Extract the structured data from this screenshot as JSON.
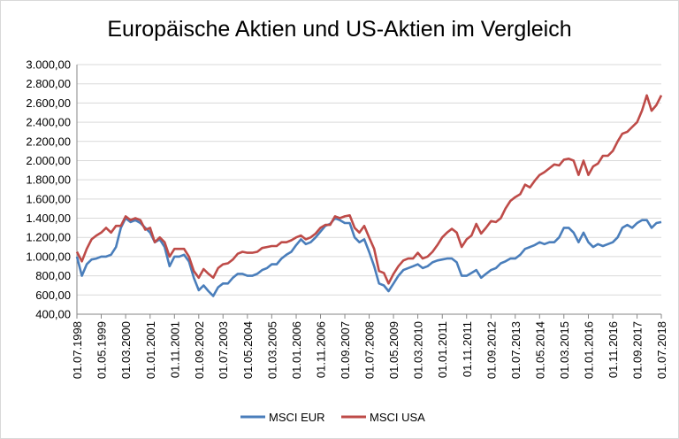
{
  "chart_data": {
    "type": "line",
    "title": "Europäische Aktien und US-Aktien im Vergleich",
    "xlabel": "",
    "ylabel": "",
    "ylim": [
      400,
      3000
    ],
    "y_ticks": [
      "400,00",
      "600,00",
      "800,00",
      "1.000,00",
      "1.200,00",
      "1.400,00",
      "1.600,00",
      "1.800,00",
      "2.000,00",
      "2.200,00",
      "2.400,00",
      "2.600,00",
      "2.800,00",
      "3.000,00"
    ],
    "x_ticks": [
      "01.07.1998",
      "01.05.1999",
      "01.03.2000",
      "01.01.2001",
      "01.11.2001",
      "01.09.2002",
      "01.07.2003",
      "01.05.2004",
      "01.03.2005",
      "01.01.2006",
      "01.11.2006",
      "01.09.2007",
      "01.07.2008",
      "01.05.2009",
      "01.03.2010",
      "01.01.2011",
      "01.11.2011",
      "01.09.2012",
      "01.07.2013",
      "01.05.2014",
      "01.03.2015",
      "01.01.2016",
      "01.11.2016",
      "01.09.2017",
      "01.07.2018"
    ],
    "x_range": [
      "1998-07-01",
      "2018-07-01"
    ],
    "legend_position": "bottom",
    "grid": true,
    "series": [
      {
        "name": "MSCI EUR",
        "color": "#4a7ebb",
        "points": [
          [
            "1998-07-01",
            1000
          ],
          [
            "1998-09-01",
            800
          ],
          [
            "1998-11-01",
            920
          ],
          [
            "1999-01-01",
            970
          ],
          [
            "1999-03-01",
            980
          ],
          [
            "1999-05-01",
            1000
          ],
          [
            "1999-07-01",
            1000
          ],
          [
            "1999-09-01",
            1020
          ],
          [
            "1999-11-01",
            1100
          ],
          [
            "2000-01-01",
            1300
          ],
          [
            "2000-03-01",
            1400
          ],
          [
            "2000-05-01",
            1360
          ],
          [
            "2000-07-01",
            1380
          ],
          [
            "2000-09-01",
            1350
          ],
          [
            "2000-11-01",
            1300
          ],
          [
            "2001-01-01",
            1250
          ],
          [
            "2001-03-01",
            1150
          ],
          [
            "2001-05-01",
            1180
          ],
          [
            "2001-07-01",
            1100
          ],
          [
            "2001-09-01",
            900
          ],
          [
            "2001-11-01",
            1000
          ],
          [
            "2002-01-01",
            1000
          ],
          [
            "2002-03-01",
            1020
          ],
          [
            "2002-05-01",
            950
          ],
          [
            "2002-07-01",
            780
          ],
          [
            "2002-09-01",
            650
          ],
          [
            "2002-11-01",
            700
          ],
          [
            "2003-01-01",
            640
          ],
          [
            "2003-03-01",
            590
          ],
          [
            "2003-05-01",
            680
          ],
          [
            "2003-07-01",
            720
          ],
          [
            "2003-09-01",
            720
          ],
          [
            "2003-11-01",
            780
          ],
          [
            "2004-01-01",
            820
          ],
          [
            "2004-03-01",
            820
          ],
          [
            "2004-05-01",
            800
          ],
          [
            "2004-07-01",
            800
          ],
          [
            "2004-09-01",
            820
          ],
          [
            "2004-11-01",
            860
          ],
          [
            "2005-01-01",
            880
          ],
          [
            "2005-03-01",
            920
          ],
          [
            "2005-05-01",
            920
          ],
          [
            "2005-07-01",
            980
          ],
          [
            "2005-09-01",
            1020
          ],
          [
            "2005-11-01",
            1050
          ],
          [
            "2006-01-01",
            1120
          ],
          [
            "2006-03-01",
            1180
          ],
          [
            "2006-05-01",
            1130
          ],
          [
            "2006-07-01",
            1150
          ],
          [
            "2006-09-01",
            1200
          ],
          [
            "2006-11-01",
            1260
          ],
          [
            "2007-01-01",
            1320
          ],
          [
            "2007-03-01",
            1340
          ],
          [
            "2007-05-01",
            1400
          ],
          [
            "2007-07-01",
            1380
          ],
          [
            "2007-09-01",
            1350
          ],
          [
            "2007-11-01",
            1350
          ],
          [
            "2008-01-01",
            1200
          ],
          [
            "2008-03-01",
            1150
          ],
          [
            "2008-05-01",
            1180
          ],
          [
            "2008-07-01",
            1050
          ],
          [
            "2008-09-01",
            900
          ],
          [
            "2008-11-01",
            720
          ],
          [
            "2009-01-01",
            700
          ],
          [
            "2009-03-01",
            640
          ],
          [
            "2009-05-01",
            720
          ],
          [
            "2009-07-01",
            800
          ],
          [
            "2009-09-01",
            860
          ],
          [
            "2009-11-01",
            880
          ],
          [
            "2010-01-01",
            900
          ],
          [
            "2010-03-01",
            920
          ],
          [
            "2010-05-01",
            880
          ],
          [
            "2010-07-01",
            900
          ],
          [
            "2010-09-01",
            940
          ],
          [
            "2010-11-01",
            960
          ],
          [
            "2011-01-01",
            970
          ],
          [
            "2011-03-01",
            980
          ],
          [
            "2011-05-01",
            980
          ],
          [
            "2011-07-01",
            940
          ],
          [
            "2011-09-01",
            800
          ],
          [
            "2011-11-01",
            800
          ],
          [
            "2012-01-01",
            830
          ],
          [
            "2012-03-01",
            860
          ],
          [
            "2012-05-01",
            780
          ],
          [
            "2012-07-01",
            820
          ],
          [
            "2012-09-01",
            860
          ],
          [
            "2012-11-01",
            880
          ],
          [
            "2013-01-01",
            930
          ],
          [
            "2013-03-01",
            950
          ],
          [
            "2013-05-01",
            980
          ],
          [
            "2013-07-01",
            980
          ],
          [
            "2013-09-01",
            1020
          ],
          [
            "2013-11-01",
            1080
          ],
          [
            "2014-01-01",
            1100
          ],
          [
            "2014-03-01",
            1120
          ],
          [
            "2014-05-01",
            1150
          ],
          [
            "2014-07-01",
            1130
          ],
          [
            "2014-09-01",
            1150
          ],
          [
            "2014-11-01",
            1150
          ],
          [
            "2015-01-01",
            1200
          ],
          [
            "2015-03-01",
            1300
          ],
          [
            "2015-05-01",
            1300
          ],
          [
            "2015-07-01",
            1250
          ],
          [
            "2015-09-01",
            1150
          ],
          [
            "2015-11-01",
            1250
          ],
          [
            "2016-01-01",
            1150
          ],
          [
            "2016-03-01",
            1100
          ],
          [
            "2016-05-01",
            1130
          ],
          [
            "2016-07-01",
            1110
          ],
          [
            "2016-09-01",
            1130
          ],
          [
            "2016-11-01",
            1150
          ],
          [
            "2017-01-01",
            1200
          ],
          [
            "2017-03-01",
            1300
          ],
          [
            "2017-05-01",
            1330
          ],
          [
            "2017-07-01",
            1300
          ],
          [
            "2017-09-01",
            1350
          ],
          [
            "2017-11-01",
            1380
          ],
          [
            "2018-01-01",
            1380
          ],
          [
            "2018-03-01",
            1300
          ],
          [
            "2018-05-01",
            1350
          ],
          [
            "2018-07-01",
            1360
          ]
        ]
      },
      {
        "name": "MSCI USA",
        "color": "#be4b48",
        "points": [
          [
            "1998-07-01",
            1050
          ],
          [
            "1998-09-01",
            950
          ],
          [
            "1998-11-01",
            1080
          ],
          [
            "1999-01-01",
            1180
          ],
          [
            "1999-03-01",
            1220
          ],
          [
            "1999-05-01",
            1250
          ],
          [
            "1999-07-01",
            1300
          ],
          [
            "1999-09-01",
            1250
          ],
          [
            "1999-11-01",
            1320
          ],
          [
            "2000-01-01",
            1320
          ],
          [
            "2000-03-01",
            1420
          ],
          [
            "2000-05-01",
            1380
          ],
          [
            "2000-07-01",
            1400
          ],
          [
            "2000-09-01",
            1380
          ],
          [
            "2000-11-01",
            1280
          ],
          [
            "2001-01-01",
            1300
          ],
          [
            "2001-03-01",
            1150
          ],
          [
            "2001-05-01",
            1200
          ],
          [
            "2001-07-01",
            1150
          ],
          [
            "2001-09-01",
            1000
          ],
          [
            "2001-11-01",
            1080
          ],
          [
            "2002-01-01",
            1080
          ],
          [
            "2002-03-01",
            1080
          ],
          [
            "2002-05-01",
            1000
          ],
          [
            "2002-07-01",
            850
          ],
          [
            "2002-09-01",
            780
          ],
          [
            "2002-11-01",
            870
          ],
          [
            "2003-01-01",
            820
          ],
          [
            "2003-03-01",
            780
          ],
          [
            "2003-05-01",
            880
          ],
          [
            "2003-07-01",
            920
          ],
          [
            "2003-09-01",
            930
          ],
          [
            "2003-11-01",
            970
          ],
          [
            "2004-01-01",
            1030
          ],
          [
            "2004-03-01",
            1050
          ],
          [
            "2004-05-01",
            1040
          ],
          [
            "2004-07-01",
            1040
          ],
          [
            "2004-09-01",
            1050
          ],
          [
            "2004-11-01",
            1090
          ],
          [
            "2005-01-01",
            1100
          ],
          [
            "2005-03-01",
            1110
          ],
          [
            "2005-05-01",
            1110
          ],
          [
            "2005-07-01",
            1150
          ],
          [
            "2005-09-01",
            1150
          ],
          [
            "2005-11-01",
            1170
          ],
          [
            "2006-01-01",
            1200
          ],
          [
            "2006-03-01",
            1220
          ],
          [
            "2006-05-01",
            1180
          ],
          [
            "2006-07-01",
            1200
          ],
          [
            "2006-09-01",
            1240
          ],
          [
            "2006-11-01",
            1300
          ],
          [
            "2007-01-01",
            1330
          ],
          [
            "2007-03-01",
            1330
          ],
          [
            "2007-05-01",
            1420
          ],
          [
            "2007-07-01",
            1400
          ],
          [
            "2007-09-01",
            1420
          ],
          [
            "2007-11-01",
            1430
          ],
          [
            "2008-01-01",
            1300
          ],
          [
            "2008-03-01",
            1250
          ],
          [
            "2008-05-01",
            1320
          ],
          [
            "2008-07-01",
            1200
          ],
          [
            "2008-09-01",
            1080
          ],
          [
            "2008-11-01",
            850
          ],
          [
            "2009-01-01",
            830
          ],
          [
            "2009-03-01",
            720
          ],
          [
            "2009-05-01",
            820
          ],
          [
            "2009-07-01",
            900
          ],
          [
            "2009-09-01",
            960
          ],
          [
            "2009-11-01",
            980
          ],
          [
            "2010-01-01",
            980
          ],
          [
            "2010-03-01",
            1040
          ],
          [
            "2010-05-01",
            980
          ],
          [
            "2010-07-01",
            1000
          ],
          [
            "2010-09-01",
            1050
          ],
          [
            "2010-11-01",
            1120
          ],
          [
            "2011-01-01",
            1200
          ],
          [
            "2011-03-01",
            1250
          ],
          [
            "2011-05-01",
            1290
          ],
          [
            "2011-07-01",
            1250
          ],
          [
            "2011-09-01",
            1100
          ],
          [
            "2011-11-01",
            1180
          ],
          [
            "2012-01-01",
            1220
          ],
          [
            "2012-03-01",
            1340
          ],
          [
            "2012-05-01",
            1240
          ],
          [
            "2012-07-01",
            1300
          ],
          [
            "2012-09-01",
            1370
          ],
          [
            "2012-11-01",
            1360
          ],
          [
            "2013-01-01",
            1400
          ],
          [
            "2013-03-01",
            1500
          ],
          [
            "2013-05-01",
            1580
          ],
          [
            "2013-07-01",
            1620
          ],
          [
            "2013-09-01",
            1650
          ],
          [
            "2013-11-01",
            1750
          ],
          [
            "2014-01-01",
            1720
          ],
          [
            "2014-03-01",
            1790
          ],
          [
            "2014-05-01",
            1850
          ],
          [
            "2014-07-01",
            1880
          ],
          [
            "2014-09-01",
            1920
          ],
          [
            "2014-11-01",
            1960
          ],
          [
            "2015-01-01",
            1950
          ],
          [
            "2015-03-01",
            2010
          ],
          [
            "2015-05-01",
            2020
          ],
          [
            "2015-07-01",
            2000
          ],
          [
            "2015-09-01",
            1850
          ],
          [
            "2015-11-01",
            2000
          ],
          [
            "2016-01-01",
            1850
          ],
          [
            "2016-03-01",
            1940
          ],
          [
            "2016-05-01",
            1970
          ],
          [
            "2016-07-01",
            2050
          ],
          [
            "2016-09-01",
            2050
          ],
          [
            "2016-11-01",
            2100
          ],
          [
            "2017-01-01",
            2200
          ],
          [
            "2017-03-01",
            2280
          ],
          [
            "2017-05-01",
            2300
          ],
          [
            "2017-07-01",
            2350
          ],
          [
            "2017-09-01",
            2400
          ],
          [
            "2017-11-01",
            2520
          ],
          [
            "2018-01-01",
            2680
          ],
          [
            "2018-03-01",
            2520
          ],
          [
            "2018-05-01",
            2580
          ],
          [
            "2018-07-01",
            2680
          ]
        ]
      }
    ]
  }
}
